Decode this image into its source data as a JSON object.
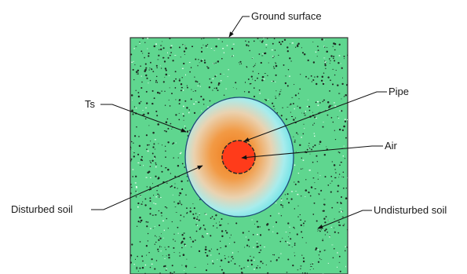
{
  "labels": {
    "ground_surface": "Ground surface",
    "ts": "Ts",
    "pipe": "Pipe",
    "air": "Air",
    "disturbed_soil": "Disturbed soil",
    "undisturbed_soil": "Undisturbed soil"
  },
  "colors": {
    "soil": "#5fd68f",
    "soil_edge": "#333333",
    "disturbed_outer": "#7fe6e6",
    "disturbed_inner": "#f0983a",
    "air": "#ff3b1a",
    "speckle": "#1e2a22"
  }
}
